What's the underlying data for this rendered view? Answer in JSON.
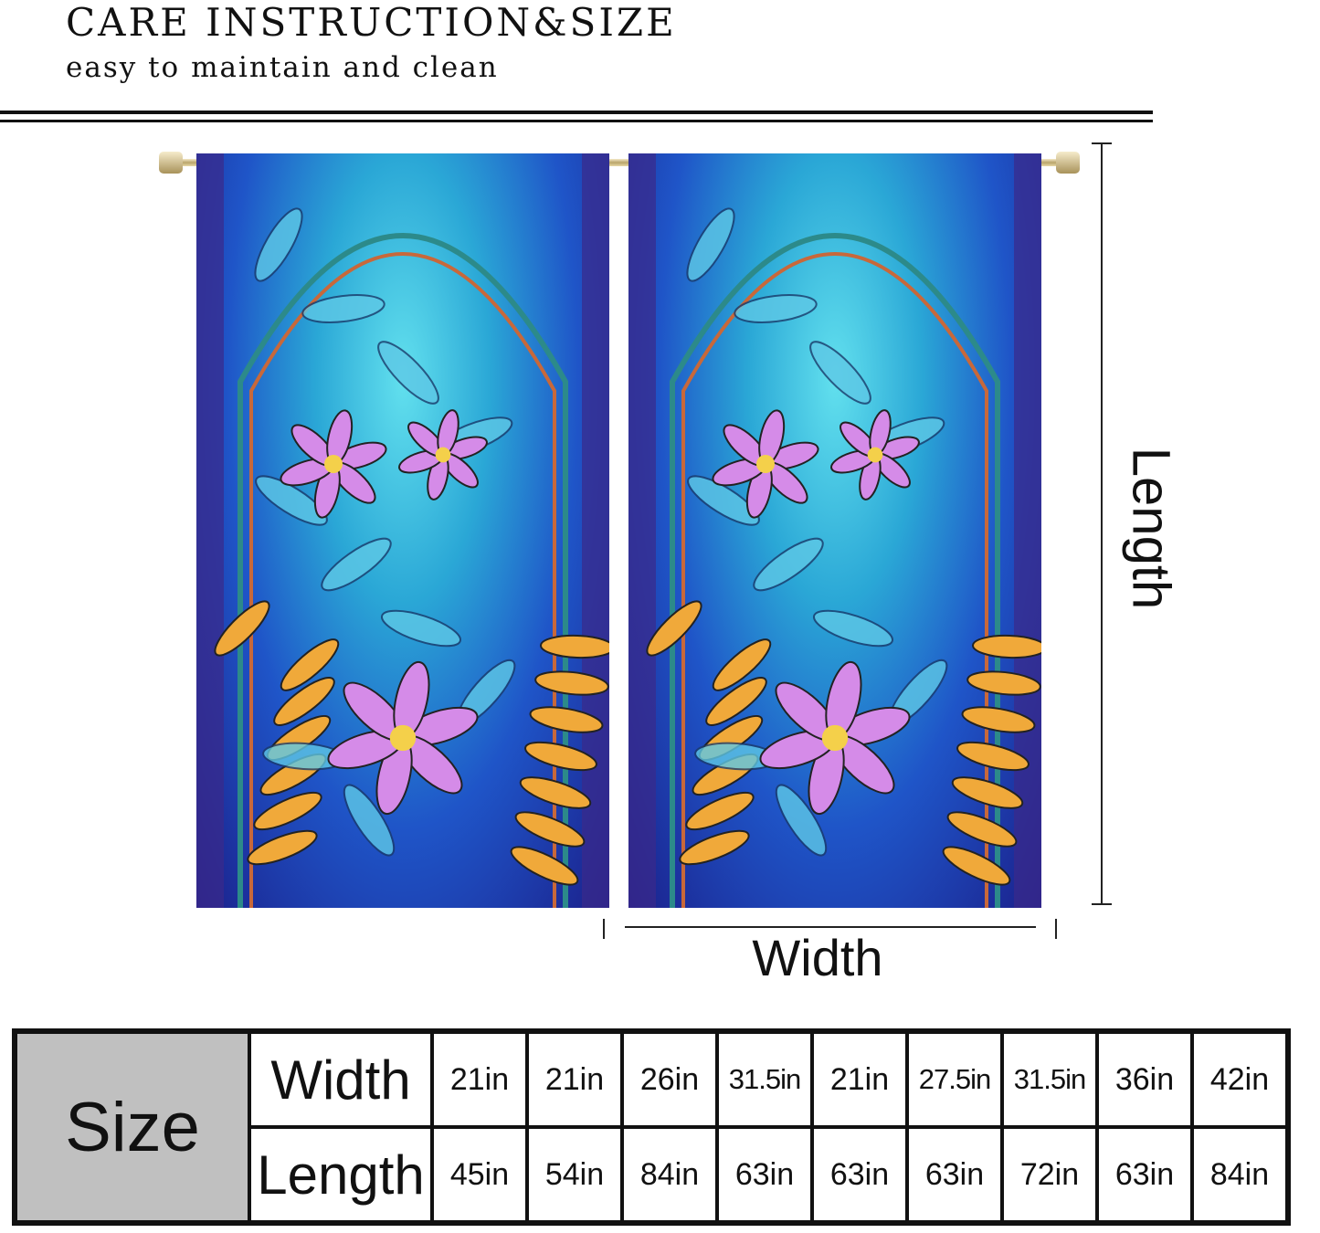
{
  "header": {
    "title": "CARE INSTRUCTION&SIZE",
    "subtitle": "easy to maintain and clean"
  },
  "diagram": {
    "length_label": "Length",
    "width_label": "Width"
  },
  "colors": {
    "panel_light": "#62e0ee",
    "panel_mid": "#2aa7d6",
    "panel_deep": "#1b1f8a",
    "flower": "#d58be8",
    "leaf": "#f0a93a",
    "size_cell": "#c0c0c0"
  },
  "size_table": {
    "label": "Size",
    "rows": [
      {
        "label": "Width",
        "values": [
          "21in",
          "21in",
          "26in",
          "31.5in",
          "21in",
          "27.5in",
          "31.5in",
          "36in",
          "42in"
        ]
      },
      {
        "label": "Length",
        "values": [
          "45in",
          "54in",
          "84in",
          "63in",
          "63in",
          "63in",
          "72in",
          "63in",
          "84in"
        ]
      }
    ]
  }
}
